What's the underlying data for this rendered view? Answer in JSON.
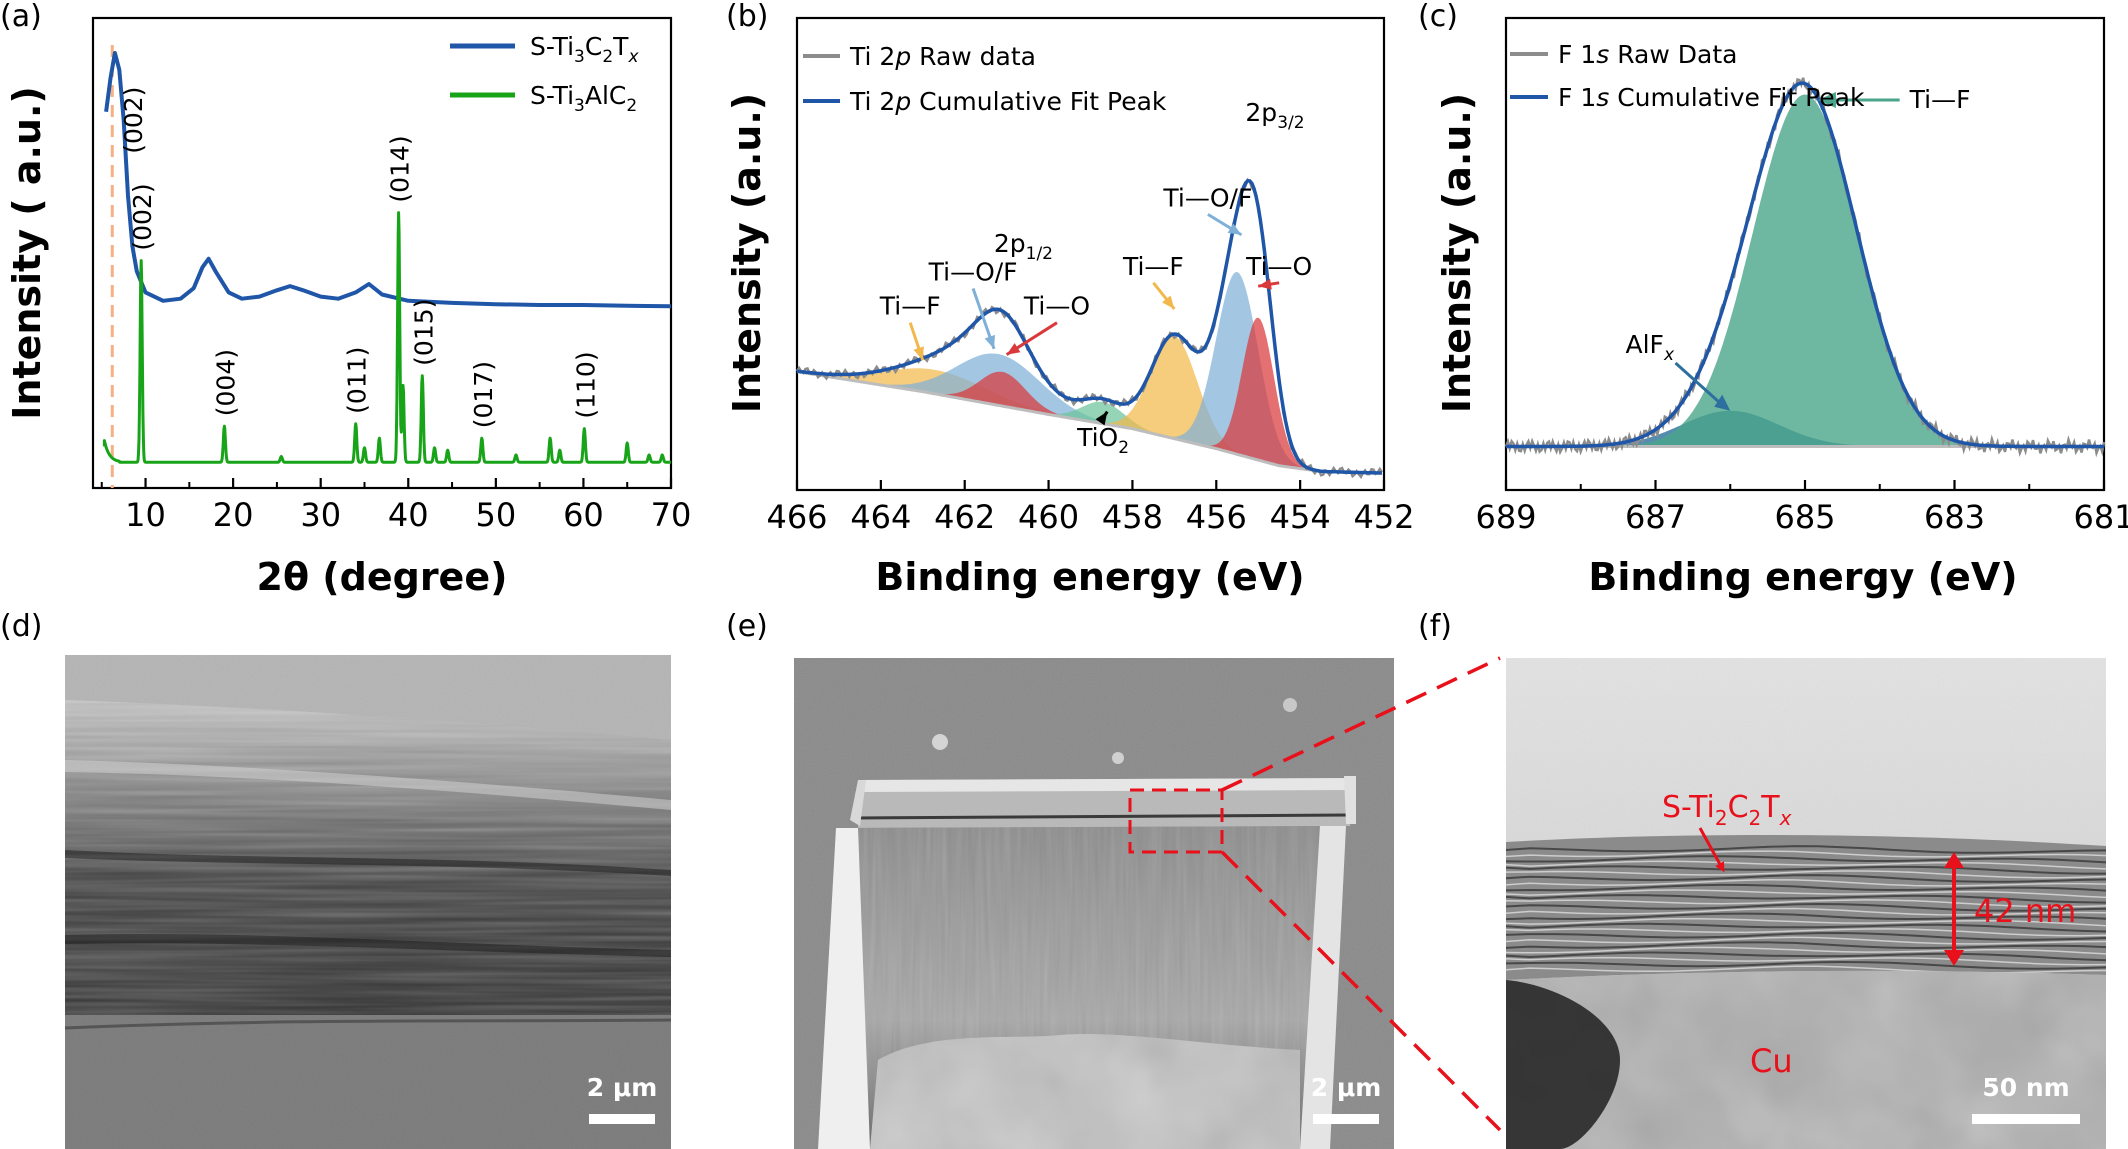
{
  "panel_labels": [
    "(a)",
    "(b)",
    "(c)",
    "(d)",
    "(e)",
    "(f)"
  ],
  "colors": {
    "blue": "#1f56a8",
    "green": "#18a418",
    "gray": "#8c8c8c",
    "orange_dash": "#f5b083",
    "fit_orange": "#f2b84b",
    "fit_blue": "#7fb0d8",
    "fit_red": "#d9393b",
    "fit_green": "#6cc49a",
    "fit_teal": "#4aa58a",
    "fit_navy": "#2d6f9e",
    "annot_red": "#e8101a"
  },
  "chart_data": [
    {
      "id": "a",
      "type": "line",
      "xlabel": "2θ (degree)",
      "ylabel": "Intensity ( a.u.)",
      "xlim": [
        4,
        70
      ],
      "xticks": [
        10,
        20,
        30,
        40,
        50,
        60,
        70
      ],
      "xtick_labels": [
        "10",
        "20",
        "30",
        "40",
        "50",
        "60",
        "70"
      ],
      "legend_position": "top-right",
      "series": [
        {
          "name": "S-Ti3C2Tx",
          "name_main": "S-Ti",
          "name_parts": [
            "3",
            "C",
            "2",
            "T",
            "x"
          ],
          "color_key": "blue",
          "x": [
            5.5,
            6.0,
            6.5,
            7.0,
            7.5,
            8.0,
            8.5,
            9.0,
            10.0,
            12.0,
            14.0,
            15.5,
            16.5,
            17.2,
            18.0,
            19.5,
            21.0,
            23.0,
            25.0,
            26.5,
            28.0,
            30.0,
            32.0,
            34.0,
            35.5,
            37.0,
            40.0,
            45.0,
            50.0,
            55.0,
            60.0,
            65.0,
            70.0
          ],
          "y": [
            8.6,
            9.4,
            10.0,
            9.6,
            8.4,
            6.6,
            5.4,
            4.8,
            4.3,
            4.1,
            4.15,
            4.4,
            4.9,
            5.1,
            4.8,
            4.3,
            4.15,
            4.2,
            4.35,
            4.45,
            4.35,
            4.2,
            4.15,
            4.3,
            4.5,
            4.25,
            4.1,
            4.05,
            4.02,
            4.0,
            4.0,
            3.98,
            3.97
          ]
        },
        {
          "name": "S-Ti3AlC2",
          "name_main": "S-Ti",
          "name_parts": [
            "3",
            "AlC",
            "2"
          ],
          "color_key": "green",
          "baseline": 0.12,
          "peaks": [
            {
              "x": 9.5,
              "h": 4.2,
              "label": "(002)"
            },
            {
              "x": 19.0,
              "h": 0.75,
              "label": "(004)"
            },
            {
              "x": 25.5,
              "h": 0.12
            },
            {
              "x": 34.0,
              "h": 0.8,
              "label": "(011)"
            },
            {
              "x": 35.0,
              "h": 0.3
            },
            {
              "x": 36.7,
              "h": 0.5
            },
            {
              "x": 38.9,
              "h": 5.2,
              "label": "(014)"
            },
            {
              "x": 39.4,
              "h": 1.6
            },
            {
              "x": 41.6,
              "h": 1.8,
              "label": "(015)"
            },
            {
              "x": 43.0,
              "h": 0.3
            },
            {
              "x": 44.5,
              "h": 0.25
            },
            {
              "x": 48.4,
              "h": 0.5,
              "label": "(017)"
            },
            {
              "x": 52.3,
              "h": 0.15
            },
            {
              "x": 56.2,
              "h": 0.5
            },
            {
              "x": 57.3,
              "h": 0.25
            },
            {
              "x": 60.1,
              "h": 0.7,
              "label": "(110)"
            },
            {
              "x": 65.0,
              "h": 0.4
            },
            {
              "x": 67.5,
              "h": 0.15
            },
            {
              "x": 69.0,
              "h": 0.15
            }
          ],
          "intro_spike": {
            "x": 5.5,
            "h": 0.45
          }
        }
      ],
      "annotations": [
        {
          "text": "(002)",
          "x": 6.6,
          "y": 9.6,
          "target": "S-Ti3C2Tx"
        }
      ],
      "dashed_reference_x": 6.2
    },
    {
      "id": "b",
      "type": "area",
      "xlabel": "Binding energy (eV)",
      "ylabel": "Intensity (a.u.)",
      "xlim": [
        466,
        452
      ],
      "x_reversed": true,
      "xticks": [
        466,
        464,
        462,
        460,
        458,
        456,
        454,
        452
      ],
      "xtick_labels": [
        "466",
        "464",
        "462",
        "460",
        "458",
        "456",
        "454",
        "452"
      ],
      "legend_position": "top-left",
      "legend": [
        {
          "pre": "Ti 2",
          "italic": "p",
          "post": " Raw data",
          "color_key": "gray"
        },
        {
          "pre": "Ti 2",
          "italic": "p",
          "post": " Cumulative Fit Peak",
          "color_key": "blue"
        }
      ],
      "background": {
        "x": [
          466,
          463,
          460,
          458,
          456,
          454.5,
          453.5,
          452
        ],
        "y": [
          1.9,
          1.55,
          1.15,
          0.9,
          0.55,
          0.25,
          0.15,
          0.12
        ]
      },
      "components": [
        {
          "name": "Ti-F",
          "center": 462.7,
          "height": 0.42,
          "sigma": 1.2,
          "color_key": "fit_orange"
        },
        {
          "name": "Ti-O/F",
          "center": 461.2,
          "height": 0.9,
          "sigma": 1.0,
          "color_key": "fit_blue"
        },
        {
          "name": "Ti-O",
          "center": 461.1,
          "height": 0.6,
          "sigma": 0.55,
          "color_key": "fit_red"
        },
        {
          "name": "TiO2",
          "center": 458.7,
          "height": 0.38,
          "sigma": 0.5,
          "color_key": "fit_green"
        },
        {
          "name": "Ti-F",
          "center": 457.0,
          "height": 1.8,
          "sigma": 0.55,
          "color_key": "fit_orange"
        },
        {
          "name": "Ti-O/F",
          "center": 455.5,
          "height": 3.2,
          "sigma": 0.5,
          "color_key": "fit_blue"
        },
        {
          "name": "Ti-O",
          "center": 455.0,
          "height": 2.5,
          "sigma": 0.38,
          "color_key": "fit_red"
        }
      ],
      "annotations": [
        {
          "text": "Ti—F",
          "x": 463.3,
          "y": 2.9
        },
        {
          "text": "Ti—O/F",
          "x": 461.8,
          "y": 3.5
        },
        {
          "text": "Ti—O",
          "x": 459.8,
          "y": 2.9
        },
        {
          "text": "TiO",
          "sub": "2",
          "x": 458.7,
          "y": 0.6
        },
        {
          "text": "Ti—F",
          "x": 457.5,
          "y": 3.6
        },
        {
          "text": "Ti—O/F",
          "x": 456.2,
          "y": 4.8
        },
        {
          "text": "Ti—O",
          "x": 454.5,
          "y": 3.6
        },
        {
          "text": "2p",
          "sub": "1/2",
          "x": 460.6,
          "y": 4.0
        },
        {
          "text": "2p",
          "sub": "3/2",
          "x": 454.6,
          "y": 6.3
        }
      ]
    },
    {
      "id": "c",
      "type": "area",
      "xlabel": "Binding energy (eV)",
      "ylabel": "Intensity (a.u.)",
      "xlim": [
        689,
        681
      ],
      "x_reversed": true,
      "xticks": [
        689,
        687,
        685,
        683,
        681
      ],
      "xtick_labels": [
        "689",
        "687",
        "685",
        "683",
        "681"
      ],
      "minor_xticks": [
        688,
        686,
        684,
        682
      ],
      "legend_position": "top-left",
      "legend": [
        {
          "pre": "F 1",
          "italic": "s",
          "post": " Raw Data",
          "color_key": "gray"
        },
        {
          "pre": "F 1",
          "italic": "s",
          "post": " Cumulative Fit Peak",
          "color_key": "blue"
        }
      ],
      "baseline": 0.1,
      "components": [
        {
          "name": "AlFx",
          "center": 686.0,
          "height": 0.65,
          "sigma": 0.65,
          "color_key": "fit_navy"
        },
        {
          "name": "Ti-F",
          "center": 685.0,
          "height": 6.4,
          "sigma": 0.7,
          "color_key": "fit_teal"
        }
      ],
      "annotations": [
        {
          "text": "Ti—F",
          "x": 683.6,
          "y": 6.4
        },
        {
          "text": "AlF",
          "sub": "x",
          "x": 687.0,
          "y": 1.8
        }
      ]
    }
  ],
  "images": {
    "d": {
      "scale_bar": "2 μm"
    },
    "e": {
      "scale_bar": "2 μm"
    },
    "f": {
      "scale_bar": "50 nm",
      "layer_label_main": "S-Ti",
      "layer_label_parts": [
        "2",
        "C",
        "2",
        "T",
        "x"
      ],
      "thickness": "42 nm",
      "substrate": "Cu"
    }
  }
}
